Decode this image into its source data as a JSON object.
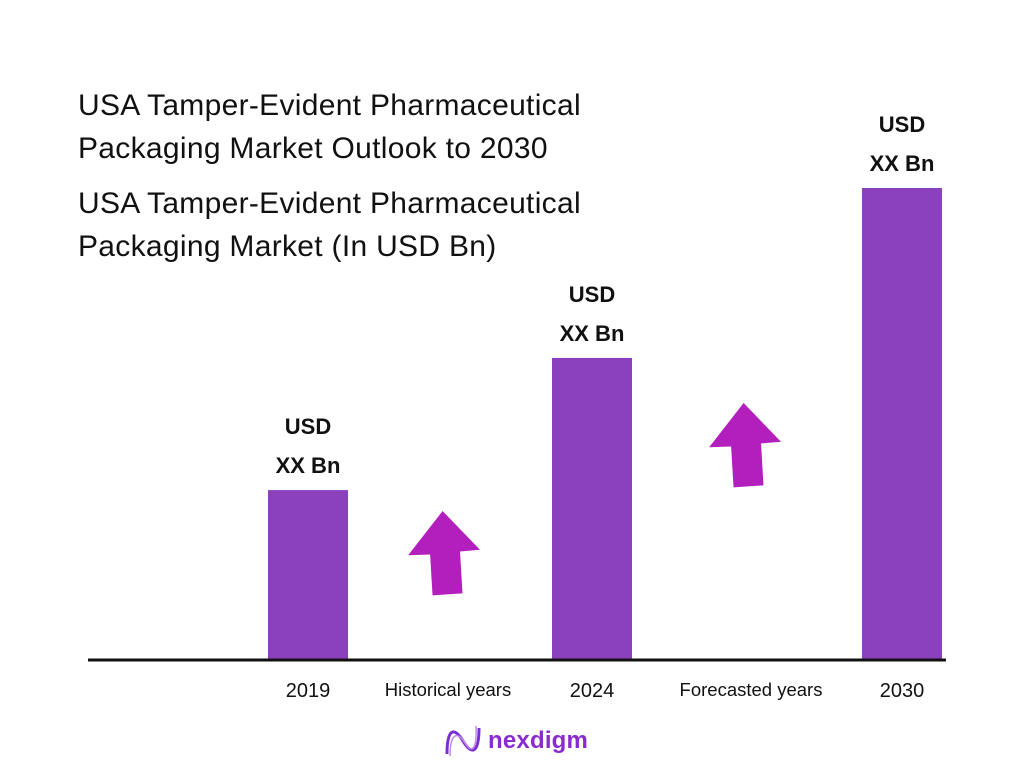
{
  "chart_data": {
    "type": "bar",
    "title": "USA Tamper-Evident Pharmaceutical Packaging Market Outlook to 2030",
    "subtitle": "USA Tamper-Evident Pharmaceutical Packaging Market (In USD Bn)",
    "categories": [
      "2019",
      "2024",
      "2030"
    ],
    "values": [
      36,
      64,
      100
    ],
    "value_note": "relative bar heights only; actual values not disclosed",
    "data_labels": [
      [
        "USD",
        "XX Bn"
      ],
      [
        "USD",
        "XX Bn"
      ],
      [
        "USD",
        "XX Bn"
      ]
    ],
    "annotations": [
      "Historical years",
      "Forecasted years"
    ],
    "xlabel": "",
    "ylabel": "",
    "ylim": [
      0,
      100
    ],
    "grid": false,
    "legend": "none",
    "colors": {
      "bar": "#8B41BC",
      "arrow": "#B31FBD",
      "axis": "#111111"
    }
  },
  "brand": {
    "name": "nexdigm",
    "color": "#8A2BD0"
  }
}
